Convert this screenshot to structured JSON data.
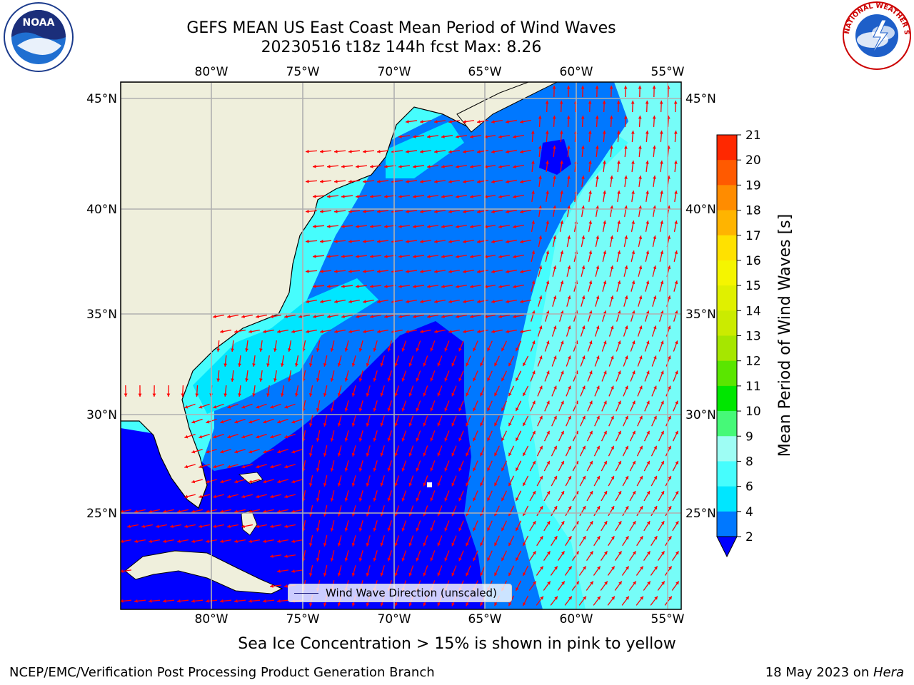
{
  "title_line1": "GEFS MEAN US East Coast Mean Period of Wind Waves",
  "title_line2": "20230516 t18z 144h fcst   Max: 8.26",
  "subcaption": "Sea Ice Concentration > 15% is shown in pink to yellow",
  "footer_left": "NCEP/EMC/Verification Post Processing Product Generation Branch",
  "footer_right_date": "18 May 2023 on ",
  "footer_right_machine": "Hera",
  "legend_label": "Wind Wave Direction (unscaled)",
  "colorbar": {
    "label": "Mean Period of Wind Waves [s]",
    "ticks": [
      "2",
      "4",
      "6",
      "8",
      "9",
      "10",
      "11",
      "12",
      "13",
      "14",
      "15",
      "16",
      "17",
      "18",
      "19",
      "20",
      "21"
    ],
    "colors": [
      "#0078ff",
      "#00e6ff",
      "#46fdfd",
      "#9efdf4",
      "#46f978",
      "#00e600",
      "#5ae600",
      "#a6e600",
      "#cbeb00",
      "#e0f000",
      "#f5f500",
      "#ffe100",
      "#ffb400",
      "#ff8c00",
      "#ff5a00",
      "#ff2800",
      "#ff0000"
    ],
    "under_color": "#0000ff"
  },
  "map": {
    "lon_labels": [
      "80°W",
      "75°W",
      "70°W",
      "65°W",
      "60°W",
      "55°W"
    ],
    "lat_labels": [
      "45°N",
      "40°N",
      "35°N",
      "30°N",
      "25°N"
    ],
    "land_color": "#efefdc",
    "arrow_color": "#ff0000",
    "grid_color": "#b0b0b0"
  },
  "logos": {
    "noaa_text": "NOAA",
    "nws_text": "NATIONAL WEATHER SERVICE"
  }
}
